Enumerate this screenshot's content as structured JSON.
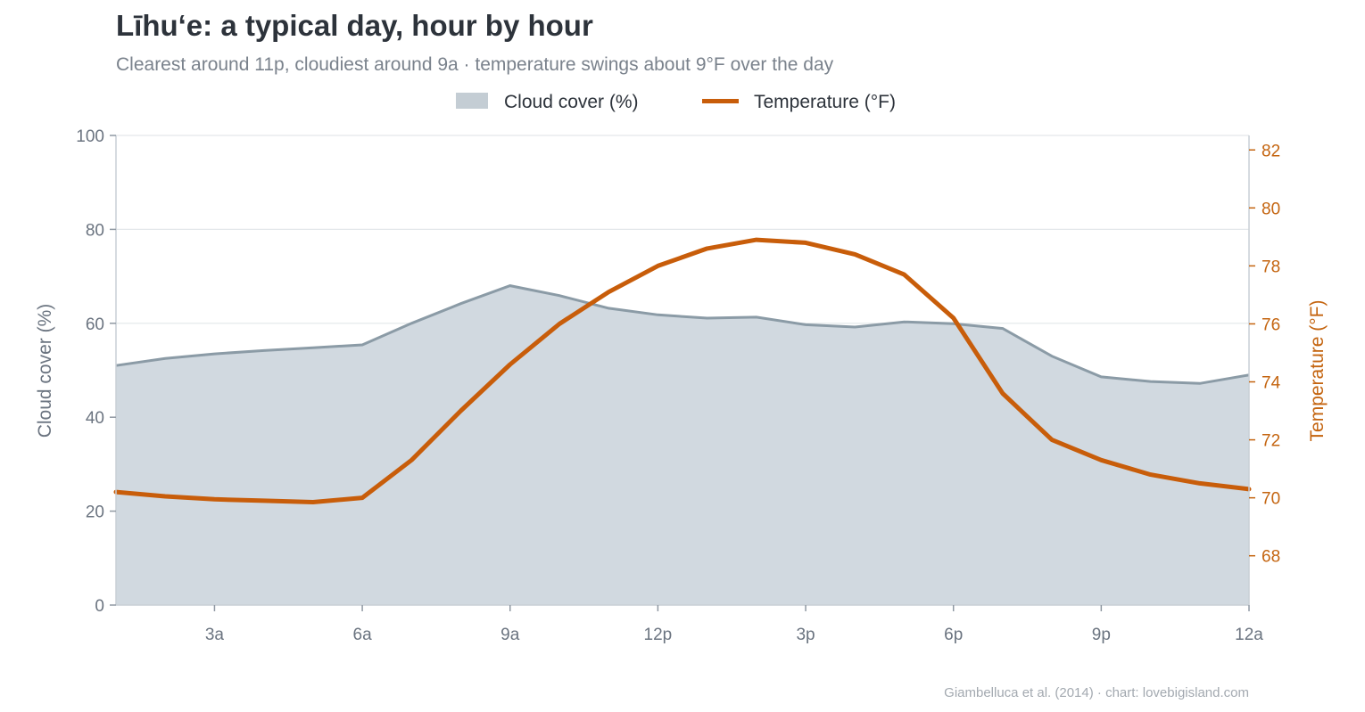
{
  "chart_data": {
    "type": "line",
    "title": "Līhuʻe: a typical day, hour by hour",
    "subtitle": "Clearest around 11p, cloudiest around 9a  ·  temperature swings about 9°F over the day",
    "source": "Giambelluca et al. (2014) · chart: lovebigisland.com",
    "legend": {
      "placement": "top-center"
    },
    "grid": true,
    "x": [
      1,
      2,
      3,
      4,
      5,
      6,
      7,
      8,
      9,
      10,
      11,
      12,
      13,
      14,
      15,
      16,
      17,
      18,
      19,
      20,
      21,
      22,
      23,
      24
    ],
    "xticks": [
      {
        "value": 3,
        "label": "3a"
      },
      {
        "value": 6,
        "label": "6a"
      },
      {
        "value": 9,
        "label": "9a"
      },
      {
        "value": 12,
        "label": "12p"
      },
      {
        "value": 15,
        "label": "3p"
      },
      {
        "value": 18,
        "label": "6p"
      },
      {
        "value": 21,
        "label": "9p"
      },
      {
        "value": 24,
        "label": "12a"
      }
    ],
    "xlim": [
      1,
      24
    ],
    "series": [
      {
        "name": "Cloud cover (%)",
        "type": "area",
        "axis": "left",
        "color": "#d1d9e0",
        "line_color": "#8b9ba6",
        "values": [
          51,
          52.5,
          53.5,
          54.2,
          54.8,
          55.4,
          60,
          64.2,
          68,
          65.9,
          63.2,
          61.8,
          61.1,
          61.3,
          59.7,
          59.2,
          60.3,
          59.9,
          58.9,
          53,
          48.6,
          47.6,
          47.2,
          49
        ]
      },
      {
        "name": "Temperature (°F)",
        "type": "line",
        "axis": "right",
        "color": "#c85d0a",
        "values": [
          70.2,
          70.05,
          69.95,
          69.9,
          69.85,
          70,
          71.3,
          73,
          74.6,
          76,
          77.1,
          78,
          78.6,
          78.9,
          78.8,
          78.4,
          77.7,
          76.2,
          73.6,
          72,
          71.3,
          70.8,
          70.5,
          70.3
        ]
      }
    ],
    "y_left": {
      "label": "Cloud cover  (%)",
      "ylim": [
        0,
        100
      ],
      "ticks": [
        0,
        20,
        40,
        60,
        80,
        100
      ]
    },
    "y_right": {
      "label": "Temperature  (°F)",
      "ylim": [
        66.3,
        82.5
      ],
      "ticks": [
        68,
        70,
        72,
        74,
        76,
        78,
        80,
        82
      ]
    }
  }
}
